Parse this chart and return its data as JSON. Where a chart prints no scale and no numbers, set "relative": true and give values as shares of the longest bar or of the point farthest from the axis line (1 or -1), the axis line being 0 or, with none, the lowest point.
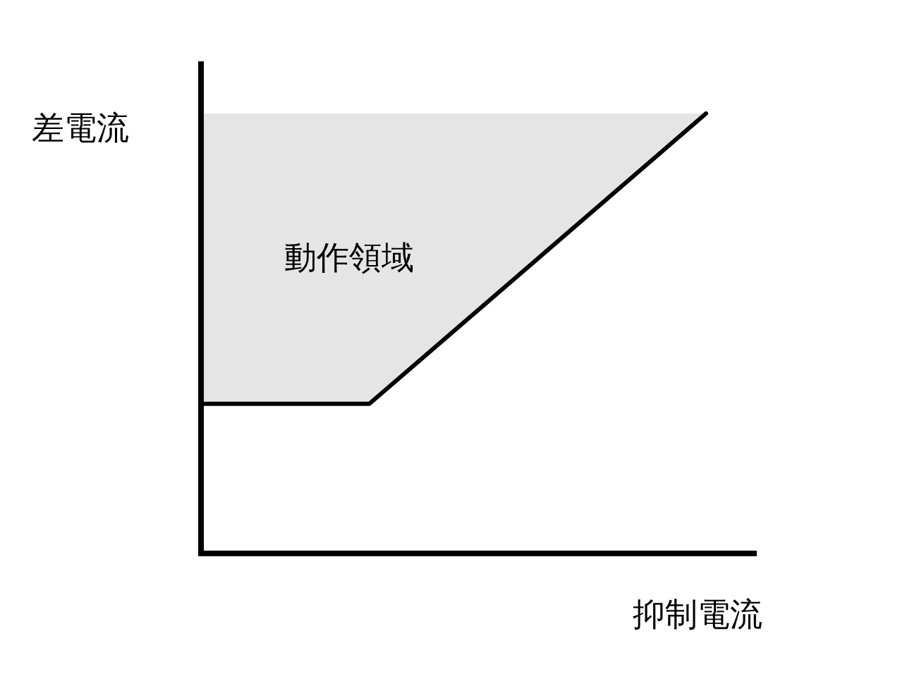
{
  "chart_data": {
    "type": "line",
    "relative": true,
    "xlabel": "抑制電流",
    "ylabel": "差電流",
    "categories": [
      null,
      null,
      null,
      null
    ],
    "series": [
      {
        "color": "#000000",
        "values": [
          0.34,
          0.34,
          0.67,
          1
        ],
        "lower": [
          0.34,
          0.34,
          0.67,
          1
        ],
        "upper": [
          1,
          1,
          1,
          1
        ]
      }
    ],
    "annotations": [
      "動作領域"
    ],
    "line_style": "solid"
  }
}
